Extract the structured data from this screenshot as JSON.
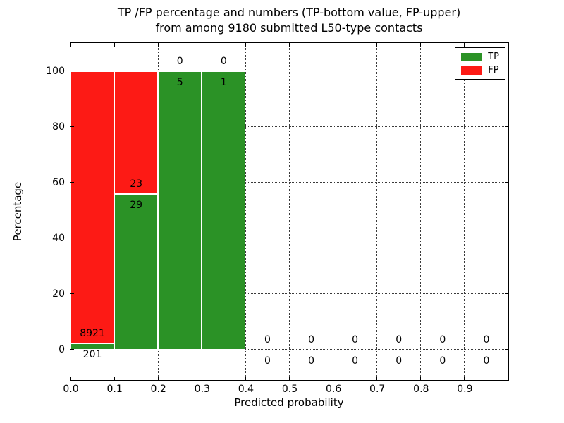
{
  "title": {
    "line1": "TP /FP percentage and numbers (TP-bottom value, FP-upper)",
    "line2": "from among 9180 submitted L50-type contacts"
  },
  "axes": {
    "xlabel": "Predicted probability",
    "ylabel": "Percentage",
    "xticks": [
      {
        "v": 0.0,
        "label": "0.0"
      },
      {
        "v": 0.1,
        "label": "0.1"
      },
      {
        "v": 0.2,
        "label": "0.2"
      },
      {
        "v": 0.3,
        "label": "0.3"
      },
      {
        "v": 0.4,
        "label": "0.4"
      },
      {
        "v": 0.5,
        "label": "0.5"
      },
      {
        "v": 0.6,
        "label": "0.6"
      },
      {
        "v": 0.7,
        "label": "0.7"
      },
      {
        "v": 0.8,
        "label": "0.8"
      },
      {
        "v": 0.9,
        "label": "0.9"
      }
    ],
    "yticks": [
      {
        "v": 0,
        "label": "0"
      },
      {
        "v": 20,
        "label": "20"
      },
      {
        "v": 40,
        "label": "40"
      },
      {
        "v": 60,
        "label": "60"
      },
      {
        "v": 80,
        "label": "80"
      },
      {
        "v": 100,
        "label": "100"
      }
    ]
  },
  "legend": {
    "items": [
      {
        "label": "TP",
        "color": "#2b9226"
      },
      {
        "label": "FP",
        "color": "#fd1a15"
      }
    ]
  },
  "colors": {
    "tp_green": "#2b9226",
    "fp_red": "#fd1a15",
    "grid": "#3a3a3a",
    "frame": "#000000",
    "background": "#ffffff",
    "text": "#000000"
  },
  "chart_data": {
    "type": "bar",
    "subtype": "stacked-percentage-histogram",
    "title": "TP /FP percentage and numbers (TP-bottom value, FP-upper) from among 9180 submitted L50-type contacts",
    "xlabel": "Predicted probability",
    "ylabel": "Percentage",
    "xlim": [
      0.0,
      1.0
    ],
    "ylim": [
      -11,
      110
    ],
    "grid": true,
    "legend_position": "upper right",
    "total_submitted": 9180,
    "bin_edges": [
      0.0,
      0.1,
      0.2,
      0.3,
      0.4,
      0.5,
      0.6,
      0.7,
      0.8,
      0.9,
      1.0
    ],
    "bin_centers": [
      0.05,
      0.15,
      0.25,
      0.35,
      0.45,
      0.55,
      0.65,
      0.75,
      0.85,
      0.95
    ],
    "series": [
      {
        "name": "TP",
        "color": "#2b9226",
        "counts": [
          201,
          29,
          5,
          1,
          0,
          0,
          0,
          0,
          0,
          0
        ]
      },
      {
        "name": "FP",
        "color": "#fd1a15",
        "counts": [
          8921,
          23,
          0,
          0,
          0,
          0,
          0,
          0,
          0,
          0
        ]
      }
    ],
    "bar_unit": "percent of bin total (TP+FP stacked to 100%); empty bins show 0/0 labels at baseline"
  }
}
